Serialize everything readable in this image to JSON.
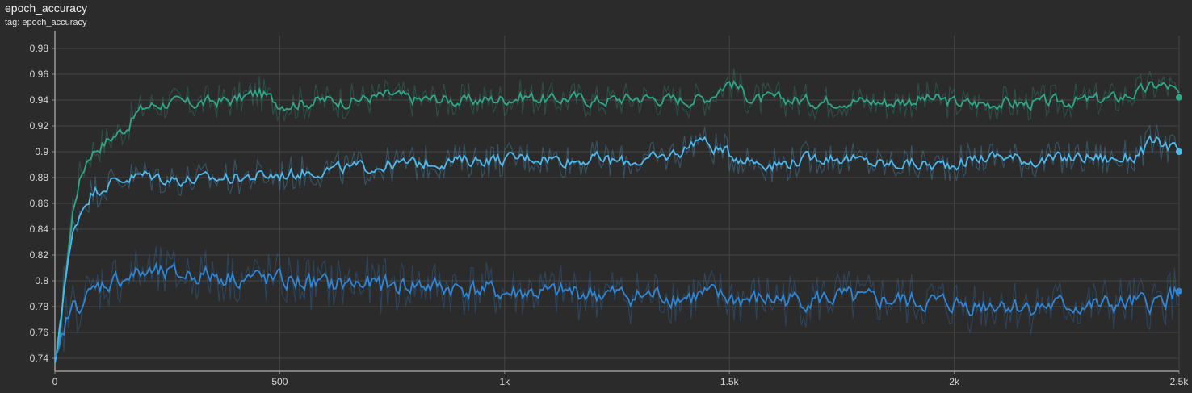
{
  "header": {
    "title": "epoch_accuracy",
    "tag_prefix": "tag: ",
    "tag_value": "epoch_accuracy"
  },
  "chart_data": {
    "type": "line",
    "title": "epoch_accuracy",
    "xlabel": "",
    "ylabel": "",
    "xlim": [
      0,
      2500
    ],
    "ylim": [
      0.73,
      0.99
    ],
    "x_ticks": [
      {
        "value": 0,
        "label": "0"
      },
      {
        "value": 500,
        "label": "500"
      },
      {
        "value": 1000,
        "label": "1k"
      },
      {
        "value": 1500,
        "label": "1.5k"
      },
      {
        "value": 2000,
        "label": "2k"
      },
      {
        "value": 2500,
        "label": "2.5k"
      }
    ],
    "y_ticks": [
      {
        "value": 0.74,
        "label": "0.74"
      },
      {
        "value": 0.76,
        "label": "0.76"
      },
      {
        "value": 0.78,
        "label": "0.78"
      },
      {
        "value": 0.8,
        "label": "0.8"
      },
      {
        "value": 0.82,
        "label": "0.82"
      },
      {
        "value": 0.84,
        "label": "0.84"
      },
      {
        "value": 0.86,
        "label": "0.86"
      },
      {
        "value": 0.88,
        "label": "0.88"
      },
      {
        "value": 0.9,
        "label": "0.9"
      },
      {
        "value": 0.92,
        "label": "0.92"
      },
      {
        "value": 0.94,
        "label": "0.94"
      },
      {
        "value": 0.96,
        "label": "0.96"
      },
      {
        "value": 0.98,
        "label": "0.98"
      }
    ],
    "grid": true,
    "legend": "none",
    "series": [
      {
        "color": "#2ea787",
        "final_value": 0.942,
        "points": [
          [
            0,
            0.73
          ],
          [
            10,
            0.76
          ],
          [
            20,
            0.8
          ],
          [
            30,
            0.83
          ],
          [
            40,
            0.86
          ],
          [
            50,
            0.875
          ],
          [
            60,
            0.885
          ],
          [
            70,
            0.895
          ],
          [
            80,
            0.9
          ],
          [
            100,
            0.905
          ],
          [
            120,
            0.91
          ],
          [
            140,
            0.915
          ],
          [
            160,
            0.92
          ],
          [
            180,
            0.93
          ],
          [
            200,
            0.935
          ],
          [
            250,
            0.938
          ],
          [
            300,
            0.937
          ],
          [
            350,
            0.939
          ],
          [
            400,
            0.94
          ],
          [
            450,
            0.946
          ],
          [
            500,
            0.937
          ],
          [
            550,
            0.938
          ],
          [
            600,
            0.94
          ],
          [
            650,
            0.939
          ],
          [
            700,
            0.942
          ],
          [
            750,
            0.944
          ],
          [
            800,
            0.94
          ],
          [
            850,
            0.941
          ],
          [
            900,
            0.939
          ],
          [
            950,
            0.94
          ],
          [
            1000,
            0.941
          ],
          [
            1050,
            0.943
          ],
          [
            1100,
            0.94
          ],
          [
            1150,
            0.942
          ],
          [
            1200,
            0.939
          ],
          [
            1250,
            0.941
          ],
          [
            1300,
            0.942
          ],
          [
            1350,
            0.941
          ],
          [
            1400,
            0.94
          ],
          [
            1450,
            0.942
          ],
          [
            1500,
            0.955
          ],
          [
            1550,
            0.94
          ],
          [
            1600,
            0.941
          ],
          [
            1650,
            0.94
          ],
          [
            1700,
            0.939
          ],
          [
            1750,
            0.94
          ],
          [
            1800,
            0.939
          ],
          [
            1850,
            0.938
          ],
          [
            1900,
            0.94
          ],
          [
            1950,
            0.941
          ],
          [
            2000,
            0.938
          ],
          [
            2050,
            0.937
          ],
          [
            2100,
            0.938
          ],
          [
            2150,
            0.937
          ],
          [
            2200,
            0.938
          ],
          [
            2250,
            0.939
          ],
          [
            2300,
            0.94
          ],
          [
            2350,
            0.941
          ],
          [
            2400,
            0.945
          ],
          [
            2450,
            0.952
          ],
          [
            2480,
            0.95
          ],
          [
            2500,
            0.942
          ]
        ]
      },
      {
        "color": "#4fb9ef",
        "final_value": 0.9,
        "points": [
          [
            0,
            0.73
          ],
          [
            10,
            0.77
          ],
          [
            20,
            0.8
          ],
          [
            30,
            0.82
          ],
          [
            40,
            0.84
          ],
          [
            50,
            0.85
          ],
          [
            60,
            0.858
          ],
          [
            70,
            0.864
          ],
          [
            80,
            0.868
          ],
          [
            100,
            0.872
          ],
          [
            120,
            0.876
          ],
          [
            150,
            0.879
          ],
          [
            200,
            0.882
          ],
          [
            250,
            0.879
          ],
          [
            300,
            0.878
          ],
          [
            350,
            0.879
          ],
          [
            400,
            0.88
          ],
          [
            450,
            0.881
          ],
          [
            500,
            0.882
          ],
          [
            550,
            0.884
          ],
          [
            600,
            0.886
          ],
          [
            650,
            0.887
          ],
          [
            700,
            0.888
          ],
          [
            750,
            0.89
          ],
          [
            800,
            0.891
          ],
          [
            850,
            0.892
          ],
          [
            900,
            0.893
          ],
          [
            950,
            0.894
          ],
          [
            1000,
            0.894
          ],
          [
            1050,
            0.896
          ],
          [
            1100,
            0.895
          ],
          [
            1150,
            0.893
          ],
          [
            1200,
            0.895
          ],
          [
            1250,
            0.892
          ],
          [
            1300,
            0.893
          ],
          [
            1350,
            0.895
          ],
          [
            1400,
            0.902
          ],
          [
            1430,
            0.912
          ],
          [
            1450,
            0.905
          ],
          [
            1500,
            0.898
          ],
          [
            1550,
            0.893
          ],
          [
            1600,
            0.89
          ],
          [
            1650,
            0.893
          ],
          [
            1700,
            0.896
          ],
          [
            1750,
            0.895
          ],
          [
            1800,
            0.892
          ],
          [
            1850,
            0.89
          ],
          [
            1900,
            0.891
          ],
          [
            1950,
            0.889
          ],
          [
            2000,
            0.891
          ],
          [
            2050,
            0.895
          ],
          [
            2100,
            0.897
          ],
          [
            2150,
            0.894
          ],
          [
            2200,
            0.893
          ],
          [
            2250,
            0.895
          ],
          [
            2300,
            0.896
          ],
          [
            2350,
            0.894
          ],
          [
            2400,
            0.896
          ],
          [
            2440,
            0.908
          ],
          [
            2470,
            0.905
          ],
          [
            2500,
            0.9
          ]
        ]
      },
      {
        "color": "#2f86d6",
        "final_value": 0.792,
        "points": [
          [
            0,
            0.73
          ],
          [
            10,
            0.745
          ],
          [
            20,
            0.765
          ],
          [
            30,
            0.775
          ],
          [
            40,
            0.78
          ],
          [
            60,
            0.785
          ],
          [
            80,
            0.79
          ],
          [
            100,
            0.797
          ],
          [
            150,
            0.803
          ],
          [
            200,
            0.806
          ],
          [
            250,
            0.804
          ],
          [
            300,
            0.805
          ],
          [
            350,
            0.804
          ],
          [
            400,
            0.803
          ],
          [
            450,
            0.802
          ],
          [
            500,
            0.8
          ],
          [
            550,
            0.799
          ],
          [
            600,
            0.797
          ],
          [
            650,
            0.798
          ],
          [
            700,
            0.797
          ],
          [
            750,
            0.796
          ],
          [
            800,
            0.797
          ],
          [
            850,
            0.795
          ],
          [
            900,
            0.794
          ],
          [
            950,
            0.793
          ],
          [
            1000,
            0.79
          ],
          [
            1050,
            0.791
          ],
          [
            1100,
            0.79
          ],
          [
            1150,
            0.791
          ],
          [
            1200,
            0.79
          ],
          [
            1250,
            0.789
          ],
          [
            1300,
            0.788
          ],
          [
            1350,
            0.789
          ],
          [
            1400,
            0.787
          ],
          [
            1450,
            0.789
          ],
          [
            1500,
            0.786
          ],
          [
            1550,
            0.785
          ],
          [
            1600,
            0.786
          ],
          [
            1650,
            0.785
          ],
          [
            1700,
            0.786
          ],
          [
            1750,
            0.787
          ],
          [
            1800,
            0.784
          ],
          [
            1850,
            0.785
          ],
          [
            1900,
            0.784
          ],
          [
            1950,
            0.783
          ],
          [
            2000,
            0.782
          ],
          [
            2050,
            0.781
          ],
          [
            2100,
            0.783
          ],
          [
            2150,
            0.78
          ],
          [
            2200,
            0.78
          ],
          [
            2250,
            0.781
          ],
          [
            2300,
            0.78
          ],
          [
            2350,
            0.781
          ],
          [
            2400,
            0.782
          ],
          [
            2450,
            0.783
          ],
          [
            2500,
            0.792
          ]
        ]
      }
    ]
  }
}
